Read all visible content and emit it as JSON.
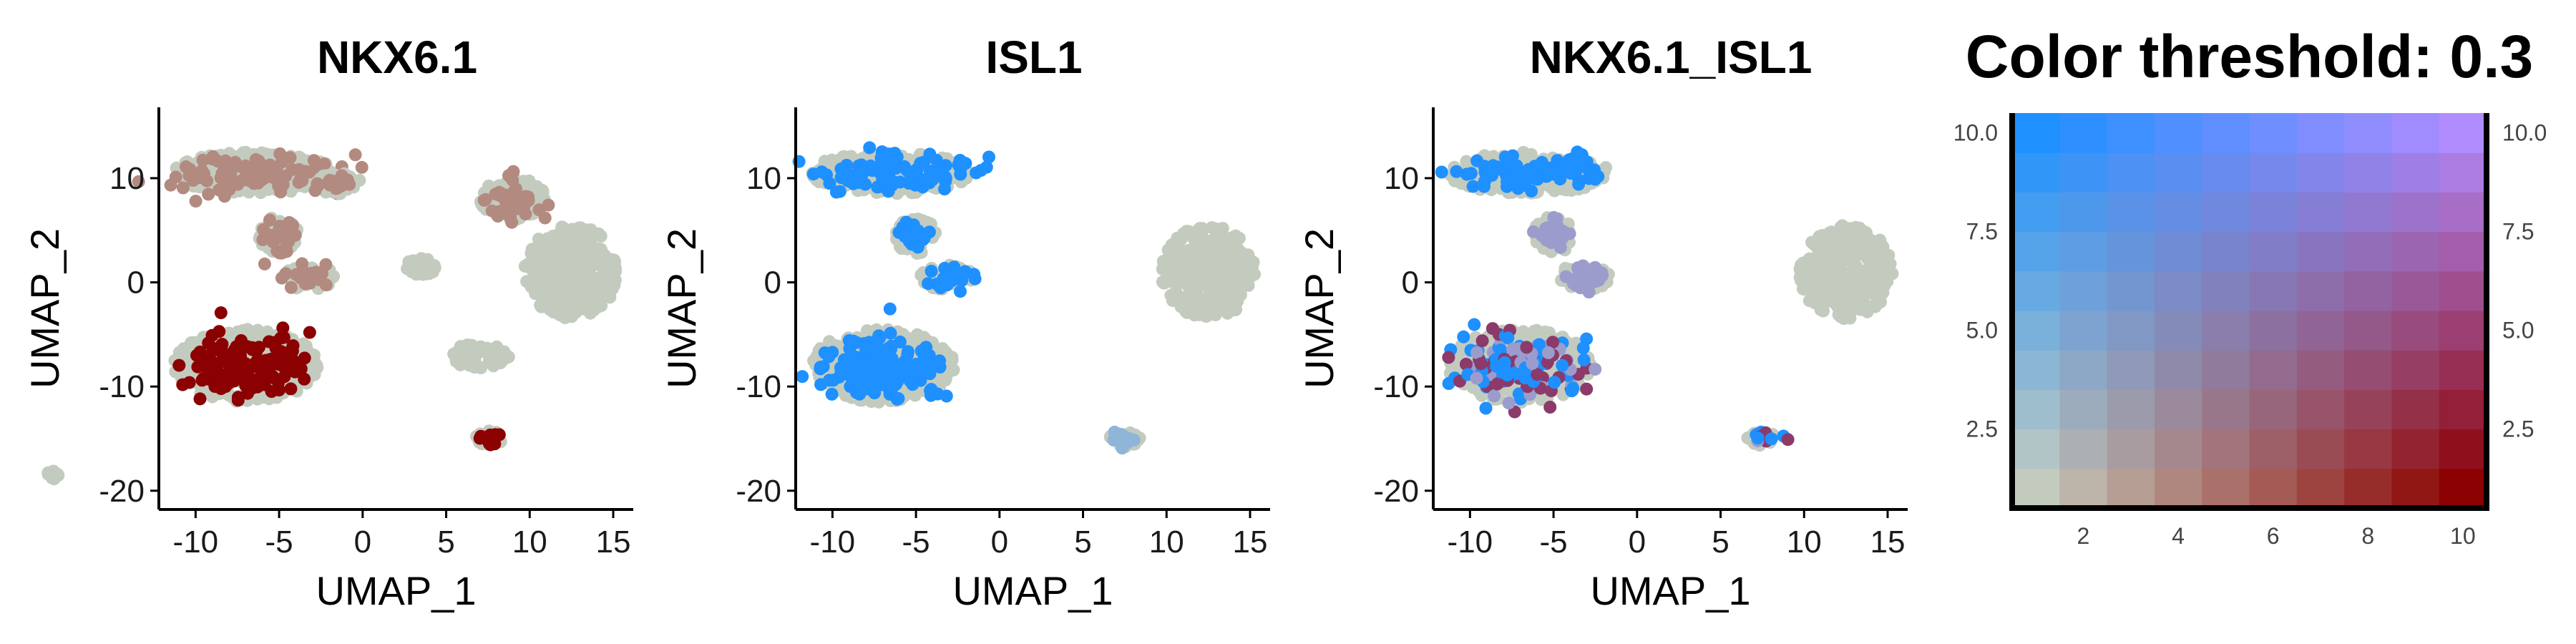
{
  "panels": [
    {
      "title": "NKX6.1",
      "xlabel": "UMAP_1",
      "ylabel": "UMAP_2",
      "xticks": [
        -10,
        -5,
        0,
        5,
        10,
        15
      ],
      "yticks": [
        -20,
        -10,
        0,
        10
      ],
      "xlim": [
        -12.2,
        16.2
      ],
      "ylim": [
        -21.8,
        16.8
      ]
    },
    {
      "title": "ISL1",
      "xlabel": "UMAP_1",
      "ylabel": "UMAP_2",
      "xticks": [
        -10,
        -5,
        0,
        5,
        10,
        15
      ],
      "yticks": [
        -20,
        -10,
        0,
        10
      ],
      "xlim": [
        -12.2,
        16.2
      ],
      "ylim": [
        -21.8,
        16.8
      ]
    },
    {
      "title": "NKX6.1_ISL1",
      "xlabel": "UMAP_1",
      "ylabel": "UMAP_2",
      "xticks": [
        -10,
        -5,
        0,
        5,
        10,
        15
      ],
      "yticks": [
        -20,
        -10,
        0,
        10
      ],
      "xlim": [
        -12.2,
        16.2
      ],
      "ylim": [
        -21.8,
        16.8
      ]
    }
  ],
  "legend": {
    "title": "Color threshold: 0.3",
    "xticks": [
      "2",
      "4",
      "6",
      "8",
      "10"
    ],
    "yticks": [
      "2.5",
      "5.0",
      "7.5",
      "10.0"
    ],
    "grid_size": 10,
    "grid_range": [
      0.5,
      10.5
    ],
    "corner_colors": {
      "low_low": "#c3cbbf",
      "high_x": "#8b0000",
      "high_y": "#1e90ff",
      "high_both": "#b08cff"
    }
  },
  "chart_data": [
    {
      "type": "scatter",
      "title": "NKX6.1",
      "xlabel": "UMAP_1",
      "ylabel": "UMAP_2",
      "xlim": [
        -12.2,
        16.2
      ],
      "ylim": [
        -21.8,
        16.8
      ],
      "colors": {
        "background": "#c3cbbf",
        "medium": "#b38a80",
        "high": "#8b0000"
      },
      "clusters": [
        {
          "name": "top-left",
          "cx": -6.5,
          "cy": 10.5,
          "rx": 4.8,
          "ry": 2.0,
          "color": "medium"
        },
        {
          "name": "top-left-tail",
          "cx": -1.5,
          "cy": 9.5,
          "rx": 1.5,
          "ry": 1.0,
          "color": "medium"
        },
        {
          "name": "stalk",
          "cx": -5.0,
          "cy": 4.5,
          "rx": 1.2,
          "ry": 1.8,
          "color": "medium"
        },
        {
          "name": "mid-small",
          "cx": -3.2,
          "cy": 0.5,
          "rx": 1.6,
          "ry": 1.2,
          "color": "medium"
        },
        {
          "name": "bottom-left",
          "cx": -7.0,
          "cy": -8.0,
          "rx": 4.3,
          "ry": 3.5,
          "color": "high"
        },
        {
          "name": "top-right",
          "cx": 9.0,
          "cy": 8.0,
          "rx": 2.0,
          "ry": 2.0,
          "color": "medium"
        },
        {
          "name": "right-big",
          "cx": 12.5,
          "cy": 1.0,
          "rx": 2.8,
          "ry": 4.5,
          "color": "background"
        },
        {
          "name": "mid-right",
          "cx": 7.0,
          "cy": -7.0,
          "rx": 1.8,
          "ry": 1.2,
          "color": "background"
        },
        {
          "name": "bottom-right-small",
          "cx": 7.5,
          "cy": -15.0,
          "rx": 0.9,
          "ry": 0.8,
          "color": "high"
        },
        {
          "name": "bottom-far",
          "cx": -18.5,
          "cy": -18.5,
          "rx": 0.4,
          "ry": 0.4,
          "color": "background"
        },
        {
          "name": "small-right-2",
          "cx": 3.5,
          "cy": 1.5,
          "rx": 1.0,
          "ry": 0.8,
          "color": "background"
        }
      ]
    },
    {
      "type": "scatter",
      "title": "ISL1",
      "xlabel": "UMAP_1",
      "ylabel": "UMAP_2",
      "xlim": [
        -12.2,
        16.2
      ],
      "ylim": [
        -21.8,
        16.8
      ],
      "colors": {
        "background": "#c3cbbf",
        "medium": "#8fb5d8",
        "high": "#1e90ff"
      },
      "clusters": [
        {
          "name": "top-left",
          "cx": -6.5,
          "cy": 10.5,
          "rx": 4.8,
          "ry": 2.0,
          "color": "high"
        },
        {
          "name": "stalk",
          "cx": -5.0,
          "cy": 4.5,
          "rx": 1.2,
          "ry": 1.8,
          "color": "high"
        },
        {
          "name": "mid-small",
          "cx": -3.2,
          "cy": 0.5,
          "rx": 1.6,
          "ry": 1.2,
          "color": "high"
        },
        {
          "name": "bottom-left",
          "cx": -7.0,
          "cy": -8.0,
          "rx": 4.3,
          "ry": 3.5,
          "color": "high"
        },
        {
          "name": "right-big",
          "cx": 12.5,
          "cy": 1.0,
          "rx": 2.8,
          "ry": 4.5,
          "color": "background"
        },
        {
          "name": "bottom-right-small",
          "cx": 7.5,
          "cy": -15.0,
          "rx": 0.9,
          "ry": 0.8,
          "color": "medium"
        }
      ]
    },
    {
      "type": "scatter",
      "title": "NKX6.1_ISL1",
      "xlabel": "UMAP_1",
      "ylabel": "UMAP_2",
      "xlim": [
        -12.2,
        16.2
      ],
      "ylim": [
        -21.8,
        16.8
      ],
      "colors": {
        "background": "#c3cbbf",
        "medium": "#9c9ccc",
        "high": "#1e90ff",
        "co": "#8b3a6a"
      },
      "clusters": [
        {
          "name": "top-left",
          "cx": -6.5,
          "cy": 10.5,
          "rx": 4.8,
          "ry": 2.0,
          "color": "high"
        },
        {
          "name": "stalk",
          "cx": -5.0,
          "cy": 4.5,
          "rx": 1.2,
          "ry": 1.8,
          "color": "medium"
        },
        {
          "name": "mid-small",
          "cx": -3.2,
          "cy": 0.5,
          "rx": 1.6,
          "ry": 1.2,
          "color": "medium"
        },
        {
          "name": "bottom-left",
          "cx": -7.0,
          "cy": -8.0,
          "rx": 4.3,
          "ry": 3.5,
          "color": "co"
        },
        {
          "name": "right-big",
          "cx": 12.5,
          "cy": 1.0,
          "rx": 2.8,
          "ry": 4.5,
          "color": "background"
        },
        {
          "name": "bottom-right-small",
          "cx": 7.5,
          "cy": -15.0,
          "rx": 0.9,
          "ry": 0.8,
          "color": "co"
        }
      ]
    },
    {
      "type": "heatmap",
      "title": "Color threshold: 0.3",
      "x": [
        1,
        2,
        3,
        4,
        5,
        6,
        7,
        8,
        9,
        10
      ],
      "y": [
        1,
        2,
        3,
        4,
        5,
        6,
        7,
        8,
        9,
        10
      ],
      "xticks": [
        2,
        4,
        6,
        8,
        10
      ],
      "yticks": [
        2.5,
        5.0,
        7.5,
        10.0
      ],
      "color_model": "bilinear blend of four corner colors"
    }
  ]
}
